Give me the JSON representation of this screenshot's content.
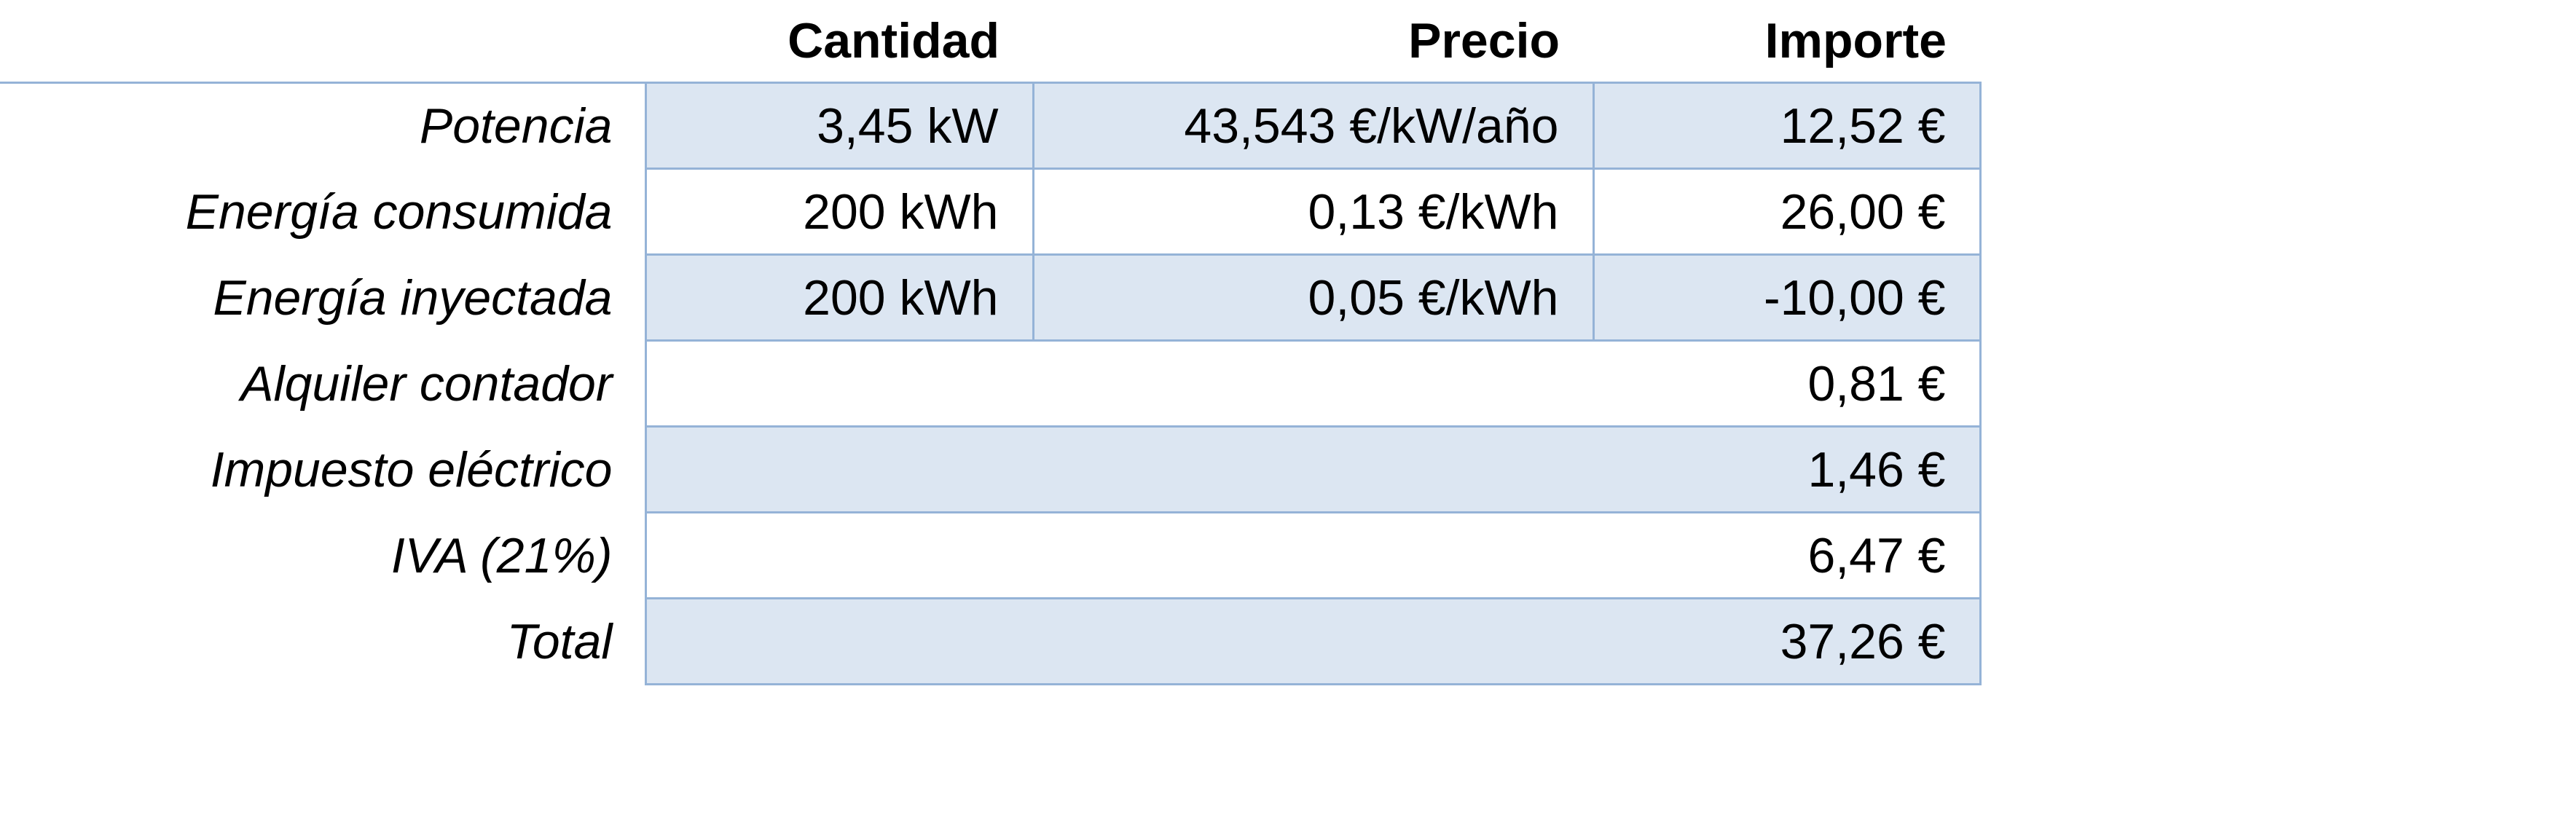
{
  "table": {
    "header": [
      "Cantidad",
      "Precio",
      "Importe"
    ],
    "rows": [
      {
        "label": "Potencia",
        "cells": [
          "3,45 kW",
          "43,543 €/kW/año",
          "12,52 €"
        ]
      },
      {
        "label": "Energía consumida",
        "cells": [
          "200 kWh",
          "0,13 €/kWh",
          "26,00 €"
        ]
      },
      {
        "label": "Energía inyectada",
        "cells": [
          "200 kWh",
          "0,05 €/kWh",
          "-10,00 €"
        ]
      },
      {
        "label": "Alquiler contador",
        "cells": [
          "0,81 €"
        ]
      },
      {
        "label": "Impuesto eléctrico",
        "cells": [
          "1,46 €"
        ]
      },
      {
        "label": "IVA (21%)",
        "cells": [
          "6,47 €"
        ]
      },
      {
        "label": "Total",
        "cells": [
          "37,26 €"
        ]
      }
    ]
  }
}
